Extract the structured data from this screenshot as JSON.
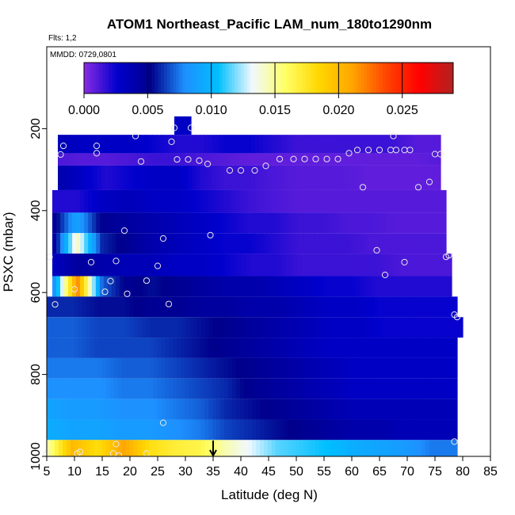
{
  "chart_data": {
    "type": "heatmap",
    "title": "ATOM1 Northeast_Pacific LAM_num_180to1290nm",
    "flights_note": "Flts: 1,2",
    "date_note": "MMDD: 0729,0801",
    "xlabel": "Latitude (deg N)",
    "ylabel": "PSXC (mbar)",
    "xlim": [
      5,
      85
    ],
    "ylim": [
      1000,
      0
    ],
    "x_ticks": [
      "5",
      "10",
      "15",
      "20",
      "25",
      "30",
      "35",
      "40",
      "45",
      "50",
      "55",
      "60",
      "65",
      "70",
      "75",
      "80",
      "85"
    ],
    "y_ticks": [
      "200",
      "400",
      "600",
      "800",
      "1000"
    ],
    "colorbar": {
      "range": [
        0,
        0.029
      ],
      "ticks": [
        "0.000",
        "0.005",
        "0.010",
        "0.015",
        "0.020",
        "0.025"
      ],
      "tick_values": [
        0,
        0.005,
        0.01,
        0.015,
        0.02,
        0.025
      ],
      "colors": [
        "#8a2be2",
        "#0000cd",
        "#00008b",
        "#1e90ff",
        "#00bfff",
        "#f0f8ff",
        "#ffff66",
        "#ffd700",
        "#ffa500",
        "#ff4500",
        "#ff0000",
        "#b22222"
      ]
    },
    "marker_latitude": 35,
    "layers": [
      {
        "p0": 170,
        "p1": 215,
        "lat": [
          28,
          31
        ],
        "v": [
          0.003,
          0.003
        ]
      },
      {
        "p0": 215,
        "p1": 260,
        "lat": [
          7,
          76
        ],
        "v": [
          0.0035,
          0.003,
          0.003,
          0.003,
          0.0025,
          0.002,
          0.002,
          0.0025,
          0.0025,
          0.002,
          0.0015,
          0.0015,
          0.0015,
          0.0015,
          0.0015,
          0.001,
          0.001
        ]
      },
      {
        "p0": 260,
        "p1": 290,
        "lat": [
          7,
          76
        ],
        "v": [
          0.0012,
          0.001,
          0.001,
          0.0012,
          0.0015,
          0.0015,
          0.0012,
          0.001,
          0.0008,
          0.0008,
          0.0008,
          0.0008,
          0.0008,
          0.0008,
          0.0008,
          0.0008,
          0.001
        ]
      },
      {
        "p0": 290,
        "p1": 350,
        "lat": [
          7,
          76
        ],
        "v": [
          0.004,
          0.003,
          0.002,
          0.0025,
          0.003,
          0.003,
          0.002,
          0.0015,
          0.0015,
          0.0012,
          0.001,
          0.001,
          0.001,
          0.0008,
          0.0008,
          0.0008,
          0.0008
        ]
      },
      {
        "p0": 350,
        "p1": 405,
        "lat": [
          6,
          77
        ],
        "v": [
          0.002,
          0.002,
          0.003,
          0.0035,
          0.003,
          0.003,
          0.0025,
          0.002,
          0.0015,
          0.0012,
          0.001,
          0.001,
          0.001,
          0.001,
          0.001,
          0.001,
          0.001
        ]
      },
      {
        "p0": 405,
        "p1": 455,
        "lat": [
          6,
          77
        ],
        "v": [
          0.0045,
          0.009,
          0.005,
          0.0045,
          0.004,
          0.0035,
          0.003,
          0.0025,
          0.002,
          0.002,
          0.0015,
          0.0015,
          0.0012,
          0.0012,
          0.001,
          0.001,
          0.001
        ]
      },
      {
        "p0": 455,
        "p1": 505,
        "lat": [
          6,
          77
        ],
        "v": [
          0.0035,
          0.0145,
          0.006,
          0.005,
          0.004,
          0.0035,
          0.003,
          0.0025,
          0.0025,
          0.002,
          0.0015,
          0.0015,
          0.0015,
          0.0012,
          0.0012,
          0.0012,
          0.0012
        ]
      },
      {
        "p0": 505,
        "p1": 560,
        "lat": [
          6,
          78
        ],
        "v": [
          0.003,
          0.0045,
          0.004,
          0.0035,
          0.0035,
          0.003,
          0.003,
          0.0025,
          0.002,
          0.002,
          0.0015,
          0.0015,
          0.0015,
          0.0015,
          0.0012,
          0.0012,
          0.0012
        ]
      },
      {
        "p0": 560,
        "p1": 610,
        "lat": [
          6,
          78
        ],
        "v": [
          0.007,
          0.022,
          0.007,
          0.005,
          0.0055,
          0.005,
          0.0045,
          0.004,
          0.004,
          0.0035,
          0.003,
          0.0025,
          0.0025,
          0.002,
          0.002,
          0.002,
          0.002
        ]
      },
      {
        "p0": 610,
        "p1": 660,
        "lat": [
          5,
          79
        ],
        "v": [
          0.006,
          0.006,
          0.0055,
          0.0055,
          0.005,
          0.005,
          0.0045,
          0.0045,
          0.004,
          0.004,
          0.0035,
          0.003,
          0.003,
          0.0025,
          0.0025,
          0.0025,
          0.0025
        ]
      },
      {
        "p0": 660,
        "p1": 710,
        "lat": [
          5,
          80
        ],
        "v": [
          0.007,
          0.007,
          0.0065,
          0.0065,
          0.006,
          0.006,
          0.0055,
          0.005,
          0.0045,
          0.004,
          0.0035,
          0.003,
          0.003,
          0.0025,
          0.0025,
          0.0025,
          0.0025
        ]
      },
      {
        "p0": 710,
        "p1": 760,
        "lat": [
          5,
          79
        ],
        "v": [
          0.007,
          0.007,
          0.0065,
          0.0065,
          0.0065,
          0.006,
          0.0055,
          0.005,
          0.0045,
          0.004,
          0.0035,
          0.003,
          0.003,
          0.003,
          0.003,
          0.003,
          0.003
        ]
      },
      {
        "p0": 760,
        "p1": 810,
        "lat": [
          5,
          79
        ],
        "v": [
          0.0075,
          0.0075,
          0.0075,
          0.007,
          0.007,
          0.0065,
          0.006,
          0.0055,
          0.005,
          0.0045,
          0.004,
          0.0035,
          0.003,
          0.003,
          0.003,
          0.003,
          0.003
        ]
      },
      {
        "p0": 810,
        "p1": 860,
        "lat": [
          5,
          79
        ],
        "v": [
          0.008,
          0.008,
          0.008,
          0.0075,
          0.0075,
          0.007,
          0.0065,
          0.006,
          0.005,
          0.0045,
          0.004,
          0.0035,
          0.003,
          0.003,
          0.003,
          0.003,
          0.003
        ]
      },
      {
        "p0": 860,
        "p1": 910,
        "lat": [
          5,
          79
        ],
        "v": [
          0.009,
          0.0085,
          0.0085,
          0.008,
          0.008,
          0.0075,
          0.007,
          0.006,
          0.0055,
          0.005,
          0.0045,
          0.004,
          0.0035,
          0.0035,
          0.0035,
          0.0035,
          0.0035
        ]
      },
      {
        "p0": 910,
        "p1": 960,
        "lat": [
          5,
          79
        ],
        "v": [
          0.0095,
          0.009,
          0.009,
          0.0085,
          0.0085,
          0.008,
          0.0075,
          0.0065,
          0.006,
          0.0055,
          0.005,
          0.0045,
          0.004,
          0.004,
          0.0035,
          0.0035,
          0.0035
        ]
      },
      {
        "p0": 960,
        "p1": 1000,
        "lat": [
          5,
          79
        ],
        "v": [
          0.0145,
          0.02,
          0.018,
          0.021,
          0.018,
          0.017,
          0.0165,
          0.0145,
          0.013,
          0.0115,
          0.011,
          0.0105,
          0.0095,
          0.009,
          0.0085,
          0.0075,
          0.0075
        ]
      }
    ],
    "points": [
      [
        8,
        242
      ],
      [
        7.5,
        263
      ],
      [
        14,
        242
      ],
      [
        14,
        260
      ],
      [
        21,
        218
      ],
      [
        22,
        280
      ],
      [
        28,
        198
      ],
      [
        31,
        198
      ],
      [
        27.5,
        232
      ],
      [
        28.5,
        275
      ],
      [
        30.5,
        275
      ],
      [
        32.5,
        278
      ],
      [
        34,
        286
      ],
      [
        38,
        302
      ],
      [
        40,
        302
      ],
      [
        42.5,
        302
      ],
      [
        44.5,
        291
      ],
      [
        47,
        274
      ],
      [
        49.5,
        274
      ],
      [
        51.5,
        274
      ],
      [
        53.5,
        274
      ],
      [
        55.5,
        274
      ],
      [
        57.5,
        274
      ],
      [
        59.5,
        260
      ],
      [
        61,
        252
      ],
      [
        63,
        252
      ],
      [
        65,
        252
      ],
      [
        67,
        252
      ],
      [
        67.5,
        218
      ],
      [
        68,
        252
      ],
      [
        69.5,
        252
      ],
      [
        70.5,
        252
      ],
      [
        62,
        343
      ],
      [
        72,
        343
      ],
      [
        74,
        330
      ],
      [
        75,
        262
      ],
      [
        76,
        262
      ],
      [
        19,
        449
      ],
      [
        26,
        468
      ],
      [
        34.5,
        460
      ],
      [
        64.5,
        497
      ],
      [
        5.5,
        513
      ],
      [
        13,
        526
      ],
      [
        17.5,
        523
      ],
      [
        16.5,
        572
      ],
      [
        23,
        571
      ],
      [
        25,
        535
      ],
      [
        66,
        557
      ],
      [
        69.5,
        526
      ],
      [
        77,
        513
      ],
      [
        77.5,
        509
      ],
      [
        6.5,
        629
      ],
      [
        10,
        592
      ],
      [
        15.5,
        598
      ],
      [
        19.5,
        603
      ],
      [
        27,
        628
      ],
      [
        78.5,
        654
      ],
      [
        79,
        660
      ],
      [
        26,
        918
      ],
      [
        78.5,
        964
      ],
      [
        5,
        993
      ],
      [
        10.5,
        993
      ],
      [
        11,
        989
      ],
      [
        17,
        993
      ],
      [
        17.5,
        970
      ],
      [
        18,
        998
      ],
      [
        23,
        993
      ]
    ]
  }
}
